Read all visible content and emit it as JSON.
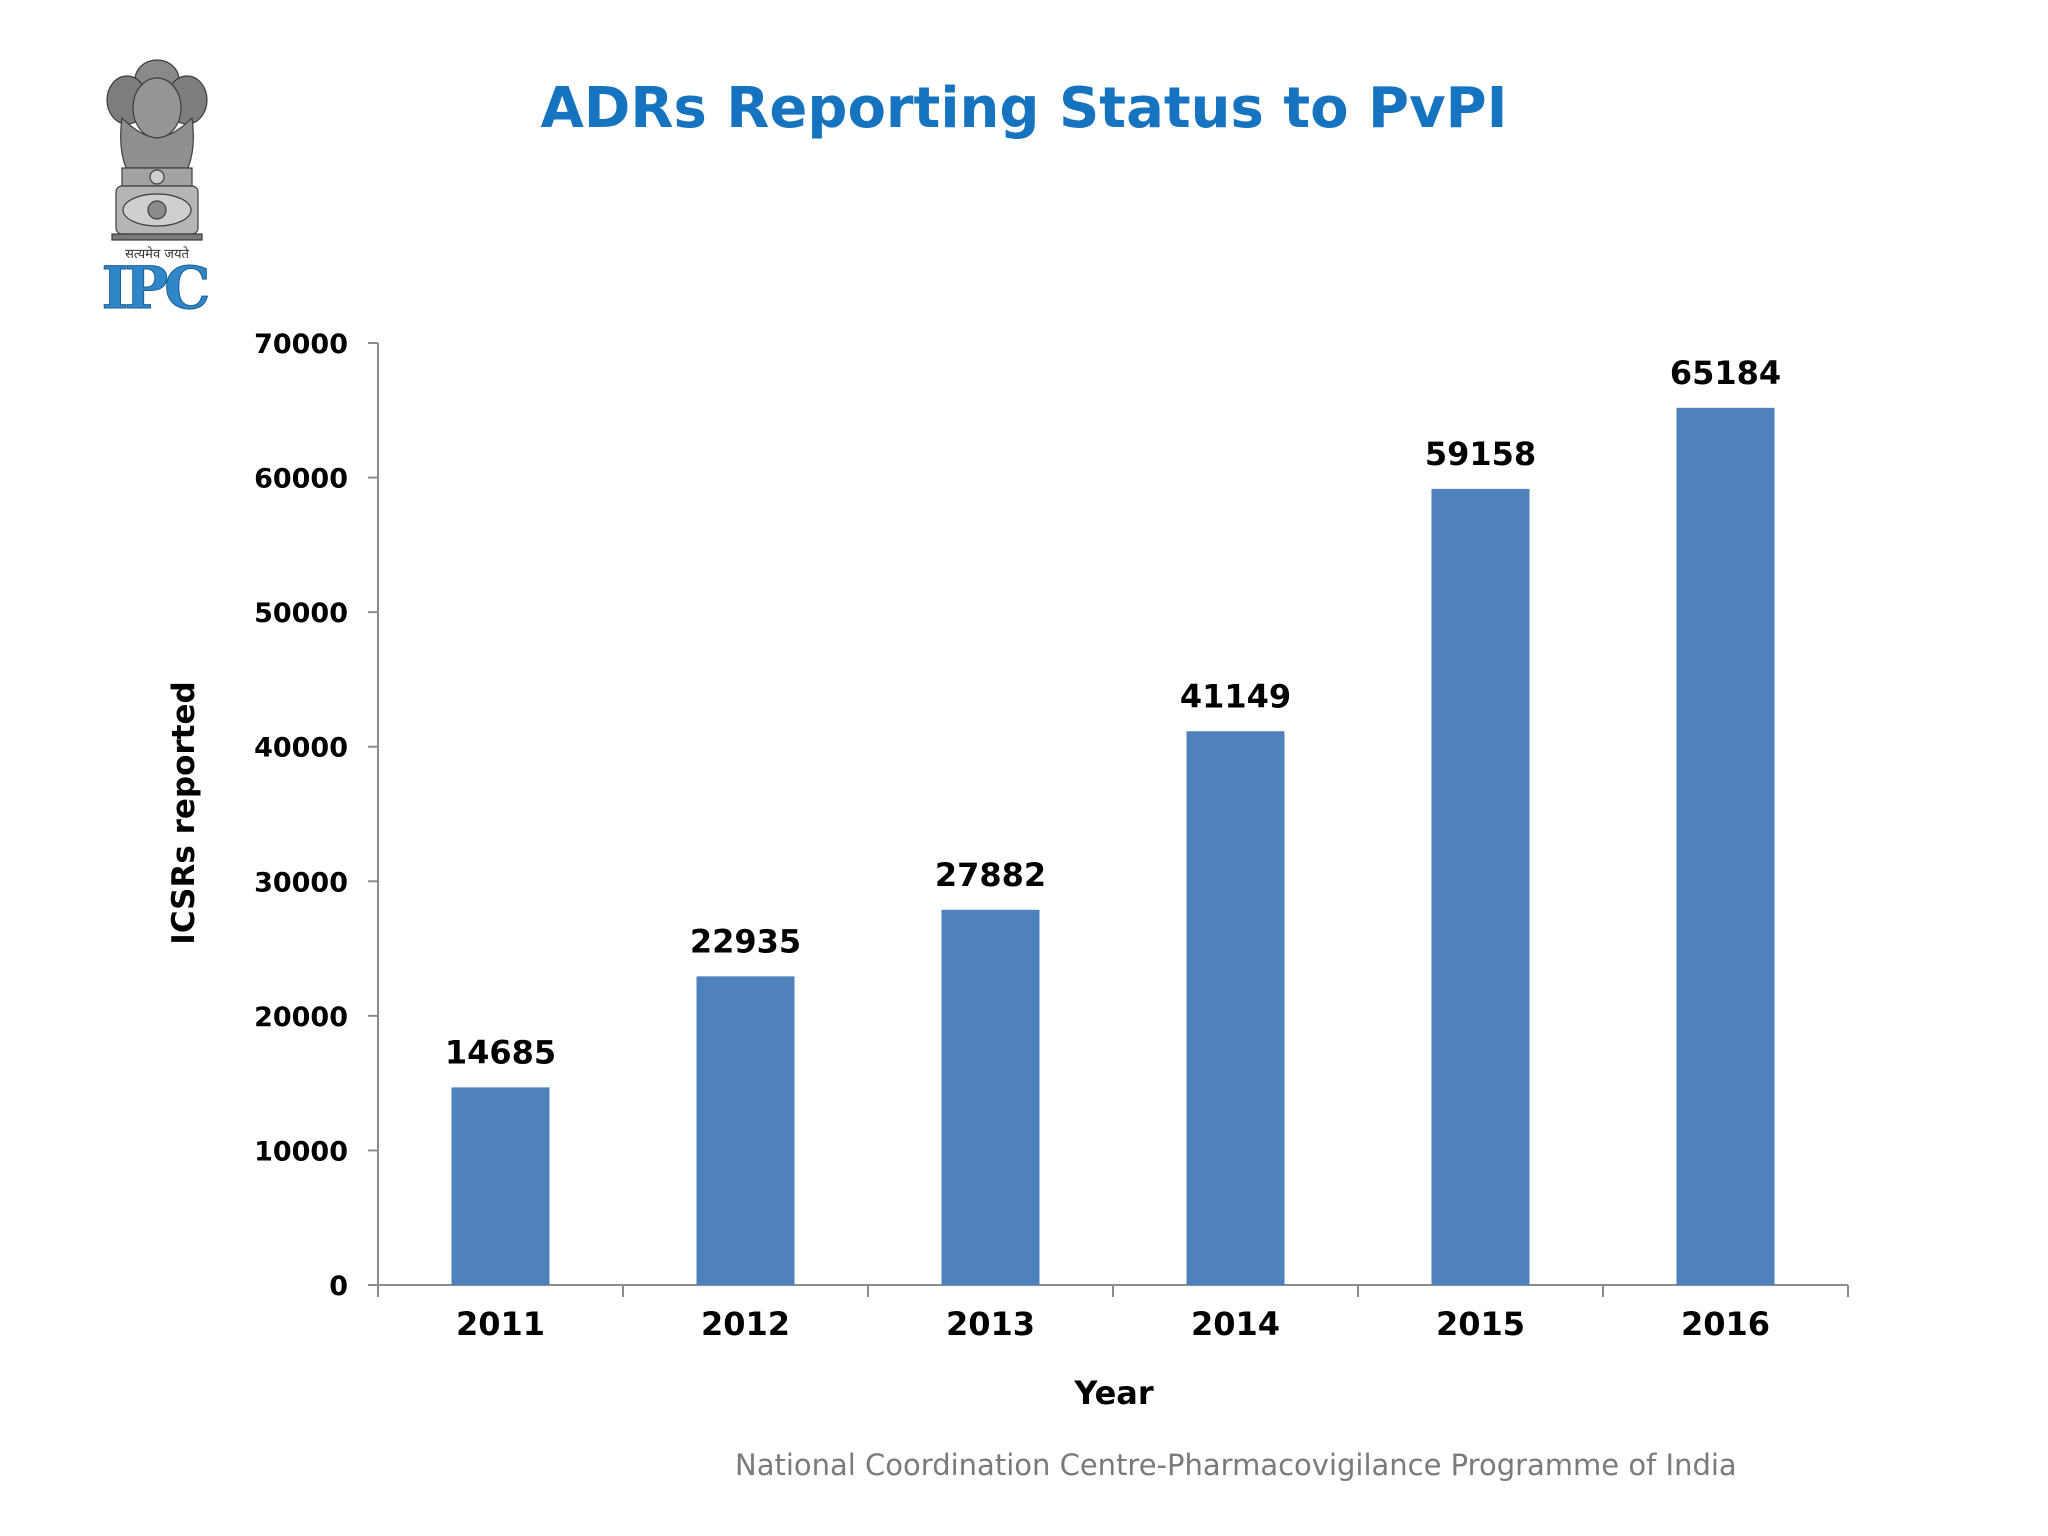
{
  "logo": {
    "motto": "सत्यमेव जयते",
    "text": "IPC"
  },
  "footer": {
    "text": "National Coordination Centre-Pharmacovigilance Programme of India"
  },
  "colors": {
    "title": "#1673bf",
    "bar": "#4f81bd",
    "axis": "#8c8c8c",
    "text": "#000000",
    "footer": "#7a7a7a"
  },
  "chart_data": {
    "type": "bar",
    "title": "ADRs Reporting Status to PvPI",
    "xlabel": "Year",
    "ylabel": "ICSRs reported",
    "categories": [
      "2011",
      "2012",
      "2013",
      "2014",
      "2015",
      "2016"
    ],
    "values": [
      14685,
      22935,
      27882,
      41149,
      59158,
      65184
    ],
    "data_labels": [
      "14685",
      "22935",
      "27882",
      "41149",
      "59158",
      "65184"
    ],
    "ylim": [
      0,
      70000
    ],
    "yticks": [
      0,
      10000,
      20000,
      30000,
      40000,
      50000,
      60000,
      70000
    ],
    "ytick_labels": [
      "0",
      "10000",
      "20000",
      "30000",
      "40000",
      "50000",
      "60000",
      "70000"
    ],
    "grid": false,
    "legend": "none"
  }
}
